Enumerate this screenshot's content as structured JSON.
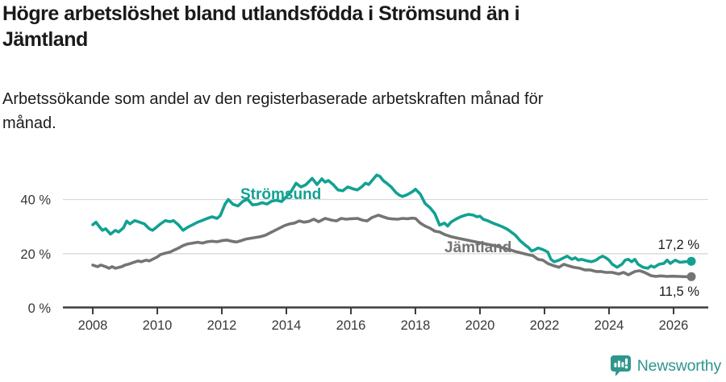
{
  "header": {
    "title": "Högre arbetslöshet bland utlandsfödda i Strömsund än i\nJämtland",
    "subtitle": "Arbetssökande som andel av den registerbaserade arbetskraften månad för\nmånad."
  },
  "footer": {
    "brand": "Newsworthy",
    "logo_icon": "bar-chart-speech-bubble",
    "brand_color": "#2f968b"
  },
  "colors": {
    "stromsund": "#12a192",
    "jamtland": "#747474",
    "text": "#1a1a1a",
    "axis": "#3d3d3d",
    "gridline": "#d9d9d9"
  },
  "chart_data": {
    "type": "line",
    "title": "Högre arbetslöshet bland utlandsfödda i Strömsund än i Jämtland",
    "subtitle": "Arbetssökande som andel av den registerbaserade arbetskraften månad för månad.",
    "unit": "%",
    "grid": "horizontal",
    "legend_position": "inline-labels",
    "x_axis": {
      "ticks": [
        {
          "value": 2008,
          "label": "2008"
        },
        {
          "value": 2010,
          "label": "2010"
        },
        {
          "value": 2012,
          "label": "2012"
        },
        {
          "value": 2014,
          "label": "2014"
        },
        {
          "value": 2016,
          "label": "2016"
        },
        {
          "value": 2018,
          "label": "2018"
        },
        {
          "value": 2020,
          "label": "2020"
        },
        {
          "value": 2022,
          "label": "2022"
        },
        {
          "value": 2024,
          "label": "2024"
        },
        {
          "value": 2026,
          "label": "2026"
        }
      ]
    },
    "y_axis": {
      "ticks": [
        {
          "value": 0,
          "label": "0 %"
        },
        {
          "value": 20,
          "label": "20 %"
        },
        {
          "value": 40,
          "label": "40 %"
        }
      ],
      "max_visible": 50
    },
    "series": [
      {
        "name": "Strömsund",
        "color": "#12a192",
        "end_label": "17,2 %",
        "end_value": 17.2,
        "points": [
          [
            2008.0,
            30.7
          ],
          [
            2008.1,
            31.6
          ],
          [
            2008.2,
            30.0
          ],
          [
            2008.3,
            28.6
          ],
          [
            2008.4,
            29.2
          ],
          [
            2008.55,
            27.2
          ],
          [
            2008.7,
            28.6
          ],
          [
            2008.8,
            28.0
          ],
          [
            2008.95,
            29.5
          ],
          [
            2009.05,
            32.0
          ],
          [
            2009.15,
            31.0
          ],
          [
            2009.3,
            32.2
          ],
          [
            2009.45,
            31.6
          ],
          [
            2009.6,
            31.0
          ],
          [
            2009.75,
            29.2
          ],
          [
            2009.85,
            28.6
          ],
          [
            2009.95,
            29.5
          ],
          [
            2010.1,
            31.0
          ],
          [
            2010.25,
            32.2
          ],
          [
            2010.4,
            31.8
          ],
          [
            2010.5,
            32.2
          ],
          [
            2010.65,
            30.7
          ],
          [
            2010.8,
            28.6
          ],
          [
            2010.95,
            29.8
          ],
          [
            2011.1,
            30.7
          ],
          [
            2011.25,
            31.6
          ],
          [
            2011.4,
            32.3
          ],
          [
            2011.55,
            33.0
          ],
          [
            2011.7,
            33.6
          ],
          [
            2011.85,
            33.0
          ],
          [
            2011.95,
            34.0
          ],
          [
            2012.1,
            38.3
          ],
          [
            2012.2,
            40.0
          ],
          [
            2012.35,
            38.2
          ],
          [
            2012.5,
            37.6
          ],
          [
            2012.65,
            39.3
          ],
          [
            2012.8,
            40.1
          ],
          [
            2012.95,
            38.0
          ],
          [
            2013.1,
            38.2
          ],
          [
            2013.25,
            38.8
          ],
          [
            2013.4,
            38.3
          ],
          [
            2013.55,
            39.4
          ],
          [
            2013.7,
            39.7
          ],
          [
            2013.85,
            39.2
          ],
          [
            2014.0,
            41.0
          ],
          [
            2014.15,
            43.0
          ],
          [
            2014.3,
            46.0
          ],
          [
            2014.45,
            44.6
          ],
          [
            2014.6,
            45.4
          ],
          [
            2014.8,
            47.8
          ],
          [
            2014.95,
            45.5
          ],
          [
            2015.1,
            47.6
          ],
          [
            2015.2,
            46.4
          ],
          [
            2015.3,
            47.0
          ],
          [
            2015.45,
            45.5
          ],
          [
            2015.6,
            43.5
          ],
          [
            2015.75,
            43.2
          ],
          [
            2015.9,
            44.6
          ],
          [
            2016.05,
            44.0
          ],
          [
            2016.2,
            43.5
          ],
          [
            2016.35,
            44.8
          ],
          [
            2016.45,
            46.0
          ],
          [
            2016.55,
            45.5
          ],
          [
            2016.7,
            47.6
          ],
          [
            2016.8,
            49.0
          ],
          [
            2016.9,
            48.5
          ],
          [
            2017.0,
            47.0
          ],
          [
            2017.1,
            46.1
          ],
          [
            2017.25,
            44.6
          ],
          [
            2017.4,
            42.5
          ],
          [
            2017.5,
            41.6
          ],
          [
            2017.6,
            41.1
          ],
          [
            2017.75,
            41.8
          ],
          [
            2017.9,
            42.8
          ],
          [
            2018.0,
            43.8
          ],
          [
            2018.15,
            42.0
          ],
          [
            2018.3,
            38.5
          ],
          [
            2018.45,
            37.0
          ],
          [
            2018.6,
            34.8
          ],
          [
            2018.75,
            30.5
          ],
          [
            2018.9,
            31.3
          ],
          [
            2019.0,
            30.2
          ],
          [
            2019.1,
            31.6
          ],
          [
            2019.25,
            32.7
          ],
          [
            2019.4,
            33.6
          ],
          [
            2019.55,
            34.2
          ],
          [
            2019.65,
            34.5
          ],
          [
            2019.8,
            34.2
          ],
          [
            2019.9,
            33.6
          ],
          [
            2020.0,
            33.8
          ],
          [
            2020.1,
            32.7
          ],
          [
            2020.25,
            32.1
          ],
          [
            2020.4,
            31.3
          ],
          [
            2020.55,
            30.6
          ],
          [
            2020.7,
            29.9
          ],
          [
            2020.85,
            29.0
          ],
          [
            2021.0,
            27.7
          ],
          [
            2021.1,
            26.8
          ],
          [
            2021.25,
            24.7
          ],
          [
            2021.4,
            23.2
          ],
          [
            2021.5,
            22.3
          ],
          [
            2021.6,
            21.0
          ],
          [
            2021.7,
            21.4
          ],
          [
            2021.8,
            22.1
          ],
          [
            2021.95,
            21.5
          ],
          [
            2022.1,
            20.6
          ],
          [
            2022.2,
            17.9
          ],
          [
            2022.3,
            17.0
          ],
          [
            2022.45,
            17.6
          ],
          [
            2022.6,
            18.5
          ],
          [
            2022.7,
            19.1
          ],
          [
            2022.85,
            17.9
          ],
          [
            2022.95,
            18.5
          ],
          [
            2023.05,
            17.6
          ],
          [
            2023.15,
            17.9
          ],
          [
            2023.3,
            17.4
          ],
          [
            2023.45,
            17.0
          ],
          [
            2023.6,
            17.6
          ],
          [
            2023.7,
            18.5
          ],
          [
            2023.8,
            19.1
          ],
          [
            2023.9,
            18.5
          ],
          [
            2024.0,
            17.6
          ],
          [
            2024.1,
            16.1
          ],
          [
            2024.25,
            15.0
          ],
          [
            2024.4,
            16.1
          ],
          [
            2024.5,
            17.6
          ],
          [
            2024.6,
            17.9
          ],
          [
            2024.7,
            17.0
          ],
          [
            2024.8,
            17.9
          ],
          [
            2024.9,
            16.1
          ],
          [
            2025.05,
            15.0
          ],
          [
            2025.2,
            14.6
          ],
          [
            2025.3,
            15.5
          ],
          [
            2025.4,
            15.0
          ],
          [
            2025.55,
            16.1
          ],
          [
            2025.7,
            16.4
          ],
          [
            2025.8,
            17.6
          ],
          [
            2025.9,
            16.4
          ],
          [
            2026.05,
            17.6
          ],
          [
            2026.2,
            16.8
          ],
          [
            2026.35,
            17.0
          ],
          [
            2026.55,
            17.2
          ]
        ]
      },
      {
        "name": "Jämtland",
        "color": "#747474",
        "end_label": "11,5 %",
        "end_value": 11.5,
        "points": [
          [
            2008.0,
            15.8
          ],
          [
            2008.15,
            15.2
          ],
          [
            2008.25,
            15.8
          ],
          [
            2008.4,
            15.2
          ],
          [
            2008.5,
            14.6
          ],
          [
            2008.6,
            15.2
          ],
          [
            2008.7,
            14.6
          ],
          [
            2008.9,
            15.2
          ],
          [
            2009.0,
            15.8
          ],
          [
            2009.1,
            16.1
          ],
          [
            2009.25,
            16.7
          ],
          [
            2009.4,
            17.3
          ],
          [
            2009.5,
            17.0
          ],
          [
            2009.65,
            17.6
          ],
          [
            2009.75,
            17.3
          ],
          [
            2009.9,
            18.2
          ],
          [
            2010.0,
            18.8
          ],
          [
            2010.1,
            19.7
          ],
          [
            2010.25,
            20.2
          ],
          [
            2010.4,
            20.6
          ],
          [
            2010.5,
            21.2
          ],
          [
            2010.65,
            22.0
          ],
          [
            2010.8,
            23.0
          ],
          [
            2010.95,
            23.6
          ],
          [
            2011.1,
            23.9
          ],
          [
            2011.25,
            24.2
          ],
          [
            2011.4,
            23.9
          ],
          [
            2011.55,
            24.4
          ],
          [
            2011.7,
            24.6
          ],
          [
            2011.85,
            24.4
          ],
          [
            2012.0,
            24.8
          ],
          [
            2012.15,
            25.0
          ],
          [
            2012.3,
            24.6
          ],
          [
            2012.45,
            24.3
          ],
          [
            2012.6,
            24.8
          ],
          [
            2012.75,
            25.4
          ],
          [
            2012.9,
            25.7
          ],
          [
            2013.05,
            26.0
          ],
          [
            2013.2,
            26.3
          ],
          [
            2013.35,
            26.8
          ],
          [
            2013.5,
            27.7
          ],
          [
            2013.65,
            28.6
          ],
          [
            2013.8,
            29.5
          ],
          [
            2013.95,
            30.4
          ],
          [
            2014.1,
            31.0
          ],
          [
            2014.25,
            31.3
          ],
          [
            2014.4,
            32.1
          ],
          [
            2014.55,
            31.6
          ],
          [
            2014.7,
            31.9
          ],
          [
            2014.85,
            32.7
          ],
          [
            2015.0,
            31.8
          ],
          [
            2015.2,
            33.0
          ],
          [
            2015.4,
            32.4
          ],
          [
            2015.55,
            32.1
          ],
          [
            2015.7,
            33.0
          ],
          [
            2015.85,
            32.7
          ],
          [
            2016.0,
            32.9
          ],
          [
            2016.2,
            33.0
          ],
          [
            2016.35,
            32.4
          ],
          [
            2016.5,
            32.1
          ],
          [
            2016.65,
            33.3
          ],
          [
            2016.85,
            34.2
          ],
          [
            2017.0,
            33.6
          ],
          [
            2017.15,
            33.0
          ],
          [
            2017.3,
            32.8
          ],
          [
            2017.45,
            32.7
          ],
          [
            2017.6,
            33.0
          ],
          [
            2017.75,
            32.9
          ],
          [
            2017.9,
            33.1
          ],
          [
            2018.0,
            33.0
          ],
          [
            2018.15,
            31.3
          ],
          [
            2018.3,
            30.2
          ],
          [
            2018.45,
            29.4
          ],
          [
            2018.6,
            28.3
          ],
          [
            2018.75,
            28.0
          ],
          [
            2018.9,
            27.1
          ],
          [
            2019.1,
            26.3
          ],
          [
            2019.35,
            25.6
          ],
          [
            2019.6,
            25.0
          ],
          [
            2019.85,
            24.4
          ],
          [
            2020.1,
            23.8
          ],
          [
            2020.35,
            23.2
          ],
          [
            2020.6,
            22.5
          ],
          [
            2020.85,
            21.7
          ],
          [
            2021.1,
            20.8
          ],
          [
            2021.3,
            20.2
          ],
          [
            2021.5,
            19.6
          ],
          [
            2021.65,
            19.2
          ],
          [
            2021.8,
            17.9
          ],
          [
            2021.95,
            17.6
          ],
          [
            2022.1,
            16.4
          ],
          [
            2022.3,
            15.5
          ],
          [
            2022.45,
            15.0
          ],
          [
            2022.6,
            16.1
          ],
          [
            2022.75,
            15.5
          ],
          [
            2022.9,
            15.0
          ],
          [
            2023.1,
            14.6
          ],
          [
            2023.25,
            14.0
          ],
          [
            2023.4,
            14.0
          ],
          [
            2023.6,
            13.4
          ],
          [
            2023.75,
            13.4
          ],
          [
            2023.9,
            13.1
          ],
          [
            2024.1,
            13.1
          ],
          [
            2024.3,
            12.5
          ],
          [
            2024.45,
            13.1
          ],
          [
            2024.6,
            12.2
          ],
          [
            2024.8,
            13.4
          ],
          [
            2024.95,
            13.7
          ],
          [
            2025.1,
            13.1
          ],
          [
            2025.3,
            11.9
          ],
          [
            2025.45,
            11.6
          ],
          [
            2025.6,
            11.8
          ],
          [
            2025.8,
            11.6
          ],
          [
            2025.95,
            11.7
          ],
          [
            2026.15,
            11.6
          ],
          [
            2026.35,
            11.5
          ],
          [
            2026.55,
            11.5
          ]
        ]
      }
    ]
  }
}
